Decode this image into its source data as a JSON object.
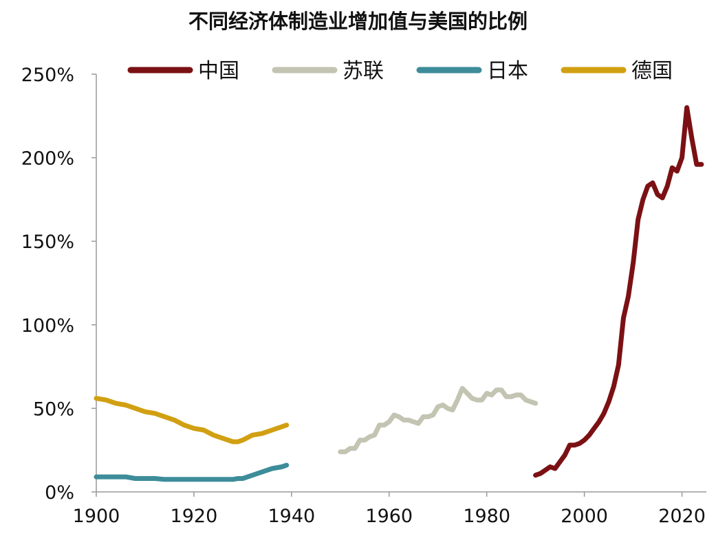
{
  "chart_data": {
    "type": "line",
    "title": "不同经济体制造业增加值与美国的比例",
    "xlabel": "",
    "ylabel": "",
    "xlim": [
      1900,
      2025
    ],
    "ylim": [
      0,
      250
    ],
    "xticks": [
      1900,
      1920,
      1940,
      1960,
      1980,
      2000,
      2020
    ],
    "yticks": [
      0,
      50,
      100,
      150,
      200,
      250
    ],
    "ytick_labels": [
      "0%",
      "50%",
      "100%",
      "150%",
      "200%",
      "250%"
    ],
    "legend_position": "top",
    "grid": false,
    "series": [
      {
        "name": "中国",
        "color": "#7B1114",
        "x": [
          1990,
          1991,
          1992,
          1993,
          1994,
          1995,
          1996,
          1997,
          1998,
          1999,
          2000,
          2001,
          2002,
          2003,
          2004,
          2005,
          2006,
          2007,
          2008,
          2009,
          2010,
          2011,
          2012,
          2013,
          2014,
          2015,
          2016,
          2017,
          2018,
          2019,
          2020,
          2021,
          2022,
          2023,
          2024
        ],
        "y": [
          10,
          11,
          13,
          15,
          14,
          18,
          22,
          28,
          28,
          29,
          31,
          34,
          38,
          42,
          47,
          54,
          63,
          76,
          104,
          117,
          137,
          163,
          175,
          183,
          185,
          178,
          176,
          183,
          194,
          192,
          200,
          230,
          212,
          196,
          196
        ]
      },
      {
        "name": "苏联",
        "color": "#C3C4B2",
        "x": [
          1950,
          1951,
          1952,
          1953,
          1954,
          1955,
          1956,
          1957,
          1958,
          1959,
          1960,
          1961,
          1962,
          1963,
          1964,
          1965,
          1966,
          1967,
          1968,
          1969,
          1970,
          1971,
          1972,
          1973,
          1974,
          1975,
          1976,
          1977,
          1978,
          1979,
          1980,
          1981,
          1982,
          1983,
          1984,
          1985,
          1986,
          1987,
          1988,
          1989,
          1990
        ],
        "y": [
          24,
          24,
          26,
          26,
          31,
          31,
          33,
          34,
          40,
          40,
          42,
          46,
          45,
          43,
          43,
          42,
          41,
          45,
          45,
          46,
          51,
          52,
          50,
          49,
          55,
          62,
          59,
          56,
          55,
          55,
          59,
          58,
          61,
          61,
          57,
          57,
          58,
          58,
          55,
          54,
          53
        ]
      },
      {
        "name": "日本",
        "color": "#3D8C9A",
        "x": [
          1900,
          1902,
          1904,
          1906,
          1908,
          1910,
          1912,
          1914,
          1916,
          1918,
          1920,
          1922,
          1924,
          1926,
          1928,
          1929,
          1930,
          1932,
          1934,
          1936,
          1938,
          1939
        ],
        "y": [
          9,
          9,
          9,
          9,
          8,
          8,
          8,
          7.5,
          7.5,
          7.5,
          7.5,
          7.5,
          7.5,
          7.5,
          7.5,
          8,
          8,
          10,
          12,
          14,
          15,
          16
        ]
      },
      {
        "name": "德国",
        "color": "#D1A012",
        "x": [
          1900,
          1902,
          1904,
          1906,
          1908,
          1910,
          1912,
          1914,
          1916,
          1918,
          1920,
          1922,
          1924,
          1926,
          1928,
          1929,
          1930,
          1932,
          1934,
          1936,
          1938,
          1939
        ],
        "y": [
          56,
          55,
          53,
          52,
          50,
          48,
          47,
          45,
          43,
          40,
          38,
          37,
          34,
          32,
          30,
          30,
          31,
          34,
          35,
          37,
          39,
          40
        ]
      }
    ]
  }
}
